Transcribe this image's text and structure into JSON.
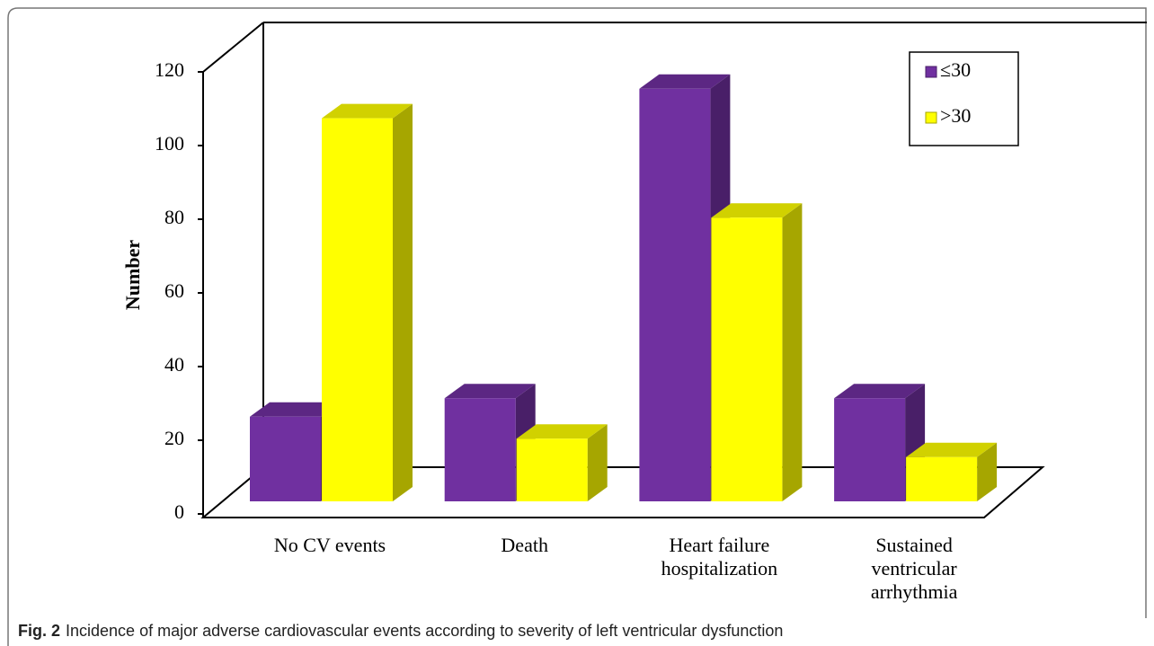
{
  "chart_data": {
    "type": "bar3d",
    "ylabel": "Number",
    "categories": [
      "No CV events",
      "Death",
      "Heart failure hospitalization",
      "Sustained ventricular arrhythmia"
    ],
    "series": [
      {
        "name": "≤30",
        "color": "#7030a0",
        "values": [
          23,
          28,
          112,
          28
        ]
      },
      {
        "name": ">30",
        "color": "#ffff00",
        "values": [
          104,
          17,
          77,
          12
        ]
      }
    ],
    "ylim": [
      0,
      120
    ],
    "yticks": [
      0,
      20,
      40,
      60,
      80,
      100,
      120
    ],
    "legend": "upper right"
  },
  "caption": {
    "label": "Fig. 2",
    "text": "Incidence of major adverse cardiovascular events according to severity of left ventricular dysfunction"
  }
}
